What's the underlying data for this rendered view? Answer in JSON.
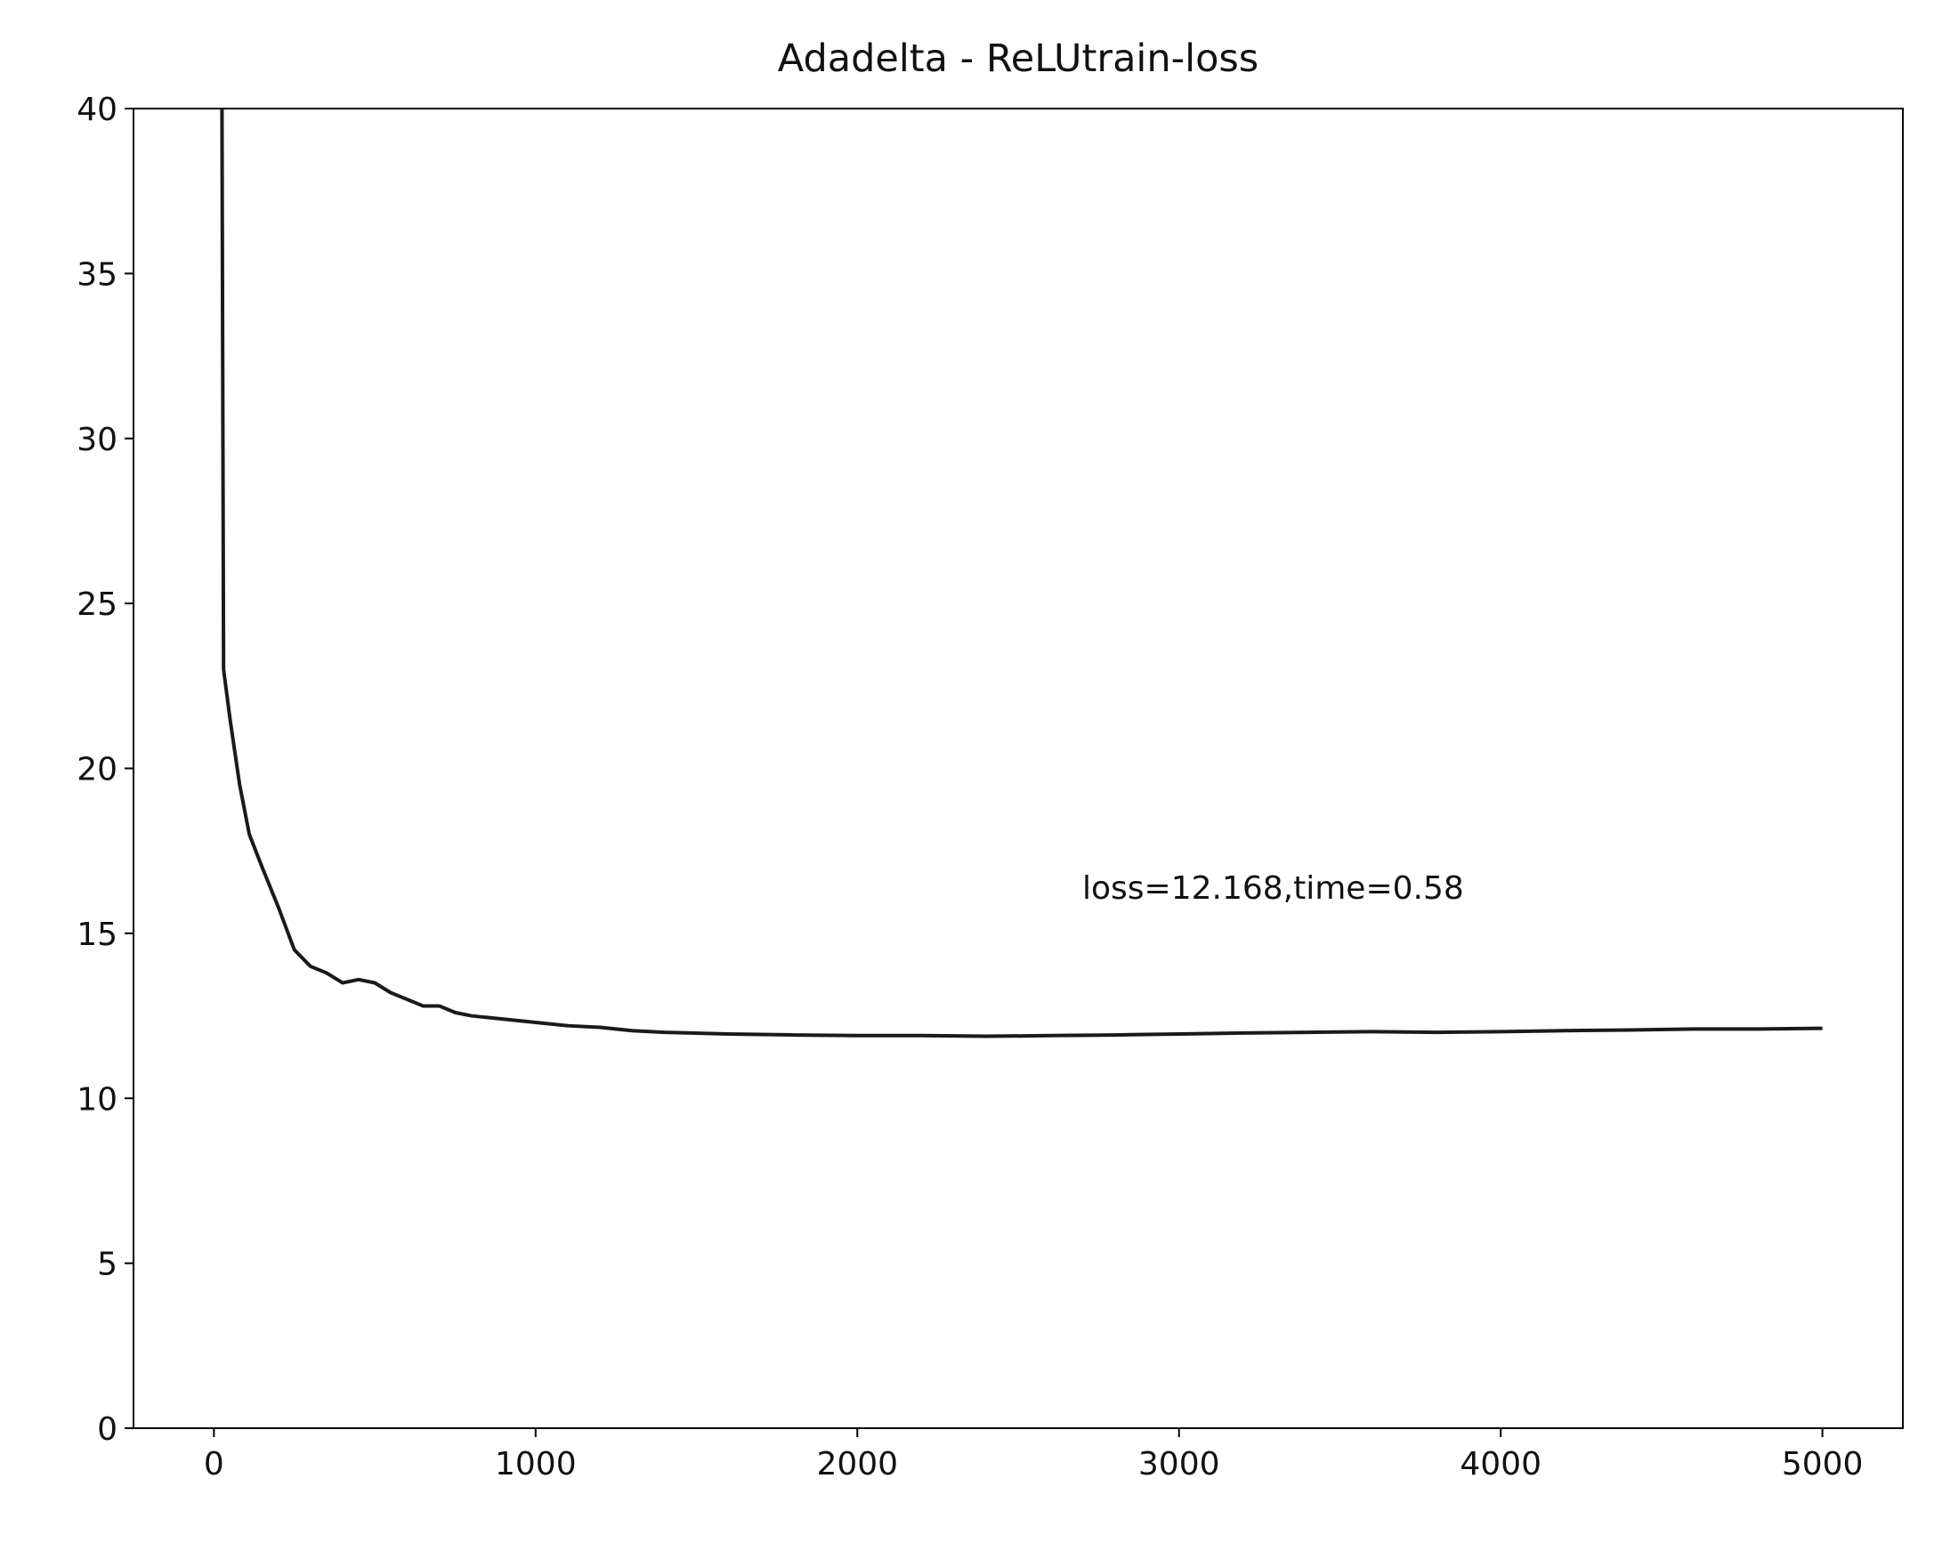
{
  "chart_data": {
    "type": "line",
    "title": "Adadelta - ReLUtrain-loss",
    "annotation": "loss=12.168,time=0.58",
    "x": [
      25,
      30,
      50,
      80,
      110,
      150,
      200,
      250,
      300,
      350,
      400,
      450,
      500,
      550,
      600,
      650,
      700,
      750,
      800,
      900,
      1000,
      1100,
      1200,
      1300,
      1400,
      1600,
      1800,
      2000,
      2200,
      2400,
      2600,
      2800,
      3000,
      3200,
      3400,
      3600,
      3800,
      4000,
      4200,
      4400,
      4600,
      4800,
      5000
    ],
    "series": [
      {
        "color": "#1a1a1a",
        "values": [
          40,
          23,
          21.5,
          19.5,
          18,
          17,
          15.8,
          14.5,
          14,
          13.8,
          13.5,
          13.6,
          13.5,
          13.2,
          13.0,
          12.8,
          12.8,
          12.6,
          12.5,
          12.4,
          12.3,
          12.2,
          12.15,
          12.05,
          12.0,
          11.95,
          11.92,
          11.9,
          11.9,
          11.88,
          11.9,
          11.92,
          11.95,
          11.98,
          12.0,
          12.02,
          12.0,
          12.02,
          12.05,
          12.07,
          12.1,
          12.1,
          12.12
        ]
      }
    ],
    "xlim": [
      -250,
      5250
    ],
    "ylim": [
      0,
      40
    ],
    "xticks": [
      0,
      1000,
      2000,
      3000,
      4000,
      5000
    ],
    "yticks": [
      0,
      5,
      10,
      15,
      20,
      25,
      30,
      35,
      40
    ],
    "grid": false
  }
}
